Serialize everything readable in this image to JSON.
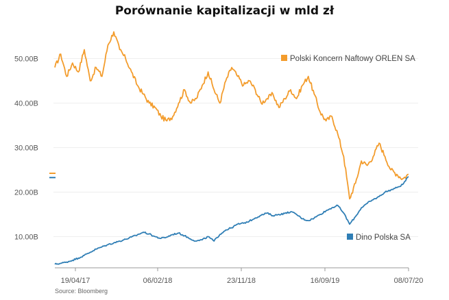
{
  "chart_data": {
    "type": "line",
    "title": "Porównanie kapitalizacji w mld zł",
    "xlabel": "",
    "ylabel": "",
    "ylim": [
      3,
      57
    ],
    "yticks": [
      10,
      20,
      30,
      40,
      50
    ],
    "ytick_labels": [
      "10.00B",
      "20.00B",
      "30.00B",
      "40.00B",
      "50.00B"
    ],
    "xtick_labels": [
      "19/04/17",
      "06/02/18",
      "23/11/18",
      "16/09/19",
      "08/07/20"
    ],
    "x_range": [
      "19/04/17",
      "08/07/20"
    ],
    "source": "Source: Bloomberg",
    "series": [
      {
        "name": "Polski Koncern Naftowy ORLEN SA",
        "color": "#F39C2C",
        "values": [
          48,
          51,
          46,
          49,
          47,
          52,
          45,
          48,
          46,
          53,
          56,
          52,
          50,
          47,
          44,
          42,
          40,
          39,
          37,
          36,
          37,
          40,
          43,
          40,
          41,
          44,
          47,
          43,
          40,
          45,
          48,
          46,
          44,
          45,
          43,
          40,
          41,
          42,
          39,
          41,
          43,
          41,
          44,
          46,
          42,
          38,
          36,
          37,
          33,
          28,
          18.5,
          22,
          27,
          26,
          28,
          31,
          28,
          25,
          24,
          23,
          24
        ]
      },
      {
        "name": "Dino Polska SA",
        "color": "#2F7EB5",
        "values": [
          3.8,
          4.0,
          4.3,
          4.7,
          5.2,
          5.8,
          6.5,
          7.2,
          7.7,
          8.2,
          8.6,
          9.0,
          9.4,
          9.9,
          10.4,
          11.0,
          10.6,
          10.0,
          9.6,
          9.9,
          10.5,
          10.8,
          10.2,
          9.5,
          9.0,
          9.3,
          10.0,
          9.0,
          10.5,
          11.5,
          12.0,
          12.8,
          13.0,
          13.5,
          14.2,
          14.8,
          15.3,
          14.7,
          15.0,
          15.2,
          15.6,
          15.0,
          14.0,
          13.6,
          14.2,
          15.0,
          15.8,
          16.5,
          17.0,
          15.3,
          12.8,
          14.5,
          16.5,
          17.5,
          18.3,
          19.0,
          20.0,
          20.5,
          21.0,
          21.7,
          23.5
        ]
      }
    ],
    "annotations": [
      {
        "text": "Polski Koncern Naftowy ORLEN SA",
        "series": 0
      },
      {
        "text": "Dino Polska SA",
        "series": 1
      }
    ]
  }
}
